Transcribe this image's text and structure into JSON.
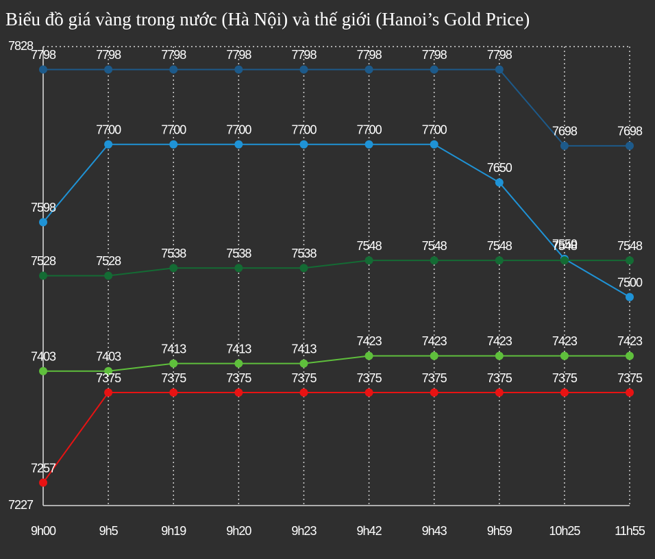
{
  "chart_data": {
    "type": "line",
    "title": "Biểu đồ giá vàng trong nước (Hà Nội) và thế giới (Hanoi’s Gold Price)",
    "categories": [
      "9h00",
      "9h5",
      "9h19",
      "9h20",
      "9h23",
      "9h42",
      "9h43",
      "9h59",
      "10h25",
      "11h55"
    ],
    "series": [
      {
        "color": "#1d5a8a",
        "values": [
          7798,
          7798,
          7798,
          7798,
          7798,
          7798,
          7798,
          7798,
          7698,
          7698
        ]
      },
      {
        "color": "#1f93d6",
        "values": [
          7598,
          7700,
          7700,
          7700,
          7700,
          7700,
          7700,
          7650,
          7550,
          7500
        ]
      },
      {
        "color": "#146b34",
        "values": [
          7528,
          7528,
          7538,
          7538,
          7538,
          7548,
          7548,
          7548,
          7548,
          7548
        ]
      },
      {
        "color": "#5fbf3c",
        "values": [
          7403,
          7403,
          7413,
          7413,
          7413,
          7423,
          7423,
          7423,
          7423,
          7423
        ]
      },
      {
        "color": "#e81313",
        "values": [
          7257,
          7375,
          7375,
          7375,
          7375,
          7375,
          7375,
          7375,
          7375,
          7375
        ]
      }
    ],
    "ylim": [
      7227,
      7828
    ],
    "yticks": [
      7227,
      7828
    ],
    "grid": true
  }
}
